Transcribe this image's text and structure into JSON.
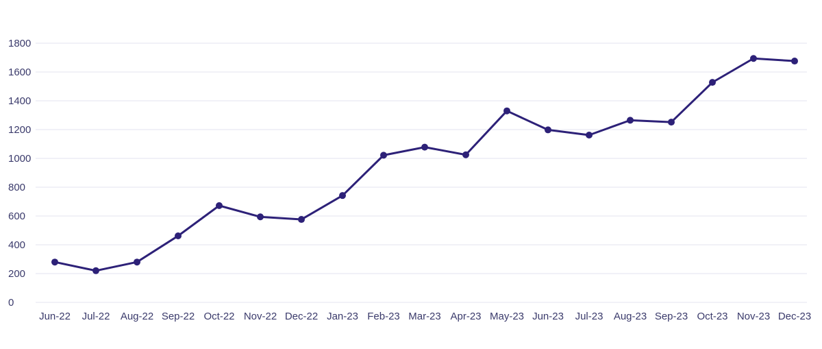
{
  "colors": {
    "line": "#2d2178",
    "grid": "#e3e3ef",
    "tick_text": "#3a3a6b",
    "background": "#ffffff"
  },
  "chart_data": {
    "type": "line",
    "title": "",
    "xlabel": "",
    "ylabel": "",
    "categories": [
      "Jun-22",
      "Jul-22",
      "Aug-22",
      "Sep-22",
      "Oct-22",
      "Nov-22",
      "Dec-22",
      "Jan-23",
      "Feb-23",
      "Mar-23",
      "Apr-23",
      "May-23",
      "Jun-23",
      "Jul-23",
      "Aug-23",
      "Sep-23",
      "Oct-23",
      "Nov-23",
      "Dec-23"
    ],
    "series": [
      {
        "values": [
          280,
          220,
          280,
          462,
          672,
          594,
          576,
          742,
          1022,
          1078,
          1025,
          1330,
          1198,
          1162,
          1265,
          1252,
          1528,
          1694,
          1676
        ]
      }
    ],
    "ylim": [
      0,
      1800
    ],
    "yticks": [
      0,
      200,
      400,
      600,
      800,
      1000,
      1200,
      1400,
      1600,
      1800
    ],
    "grid": true,
    "legend": "none",
    "markers": true
  }
}
